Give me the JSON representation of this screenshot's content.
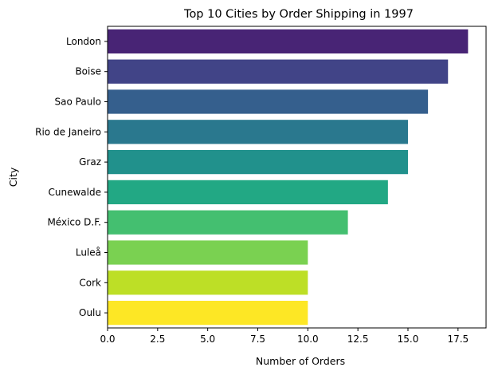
{
  "chart_data": {
    "type": "bar",
    "orientation": "horizontal",
    "title": "Top 10 Cities by Order Shipping in 1997",
    "xlabel": "Number of Orders",
    "ylabel": "City",
    "categories": [
      "London",
      "Boise",
      "Sao Paulo",
      "Rio de Janeiro",
      "Graz",
      "Cunewalde",
      "México D.F.",
      "Luleå",
      "Cork",
      "Oulu"
    ],
    "values": [
      18,
      17,
      16,
      15,
      15,
      14,
      12,
      10,
      10,
      10
    ],
    "colors": [
      "#482475",
      "#414487",
      "#355f8d",
      "#2a788e",
      "#21918c",
      "#22a884",
      "#44bf70",
      "#7ad151",
      "#bddf26",
      "#fde725"
    ],
    "xlim": [
      0,
      18.9
    ],
    "xticks": [
      0,
      2.5,
      5,
      7.5,
      10,
      12.5,
      15,
      17.5
    ],
    "xtick_labels": [
      "0.0",
      "2.5",
      "5.0",
      "7.5",
      "10.0",
      "12.5",
      "15.0",
      "17.5"
    ],
    "grid": false,
    "legend": "none"
  }
}
